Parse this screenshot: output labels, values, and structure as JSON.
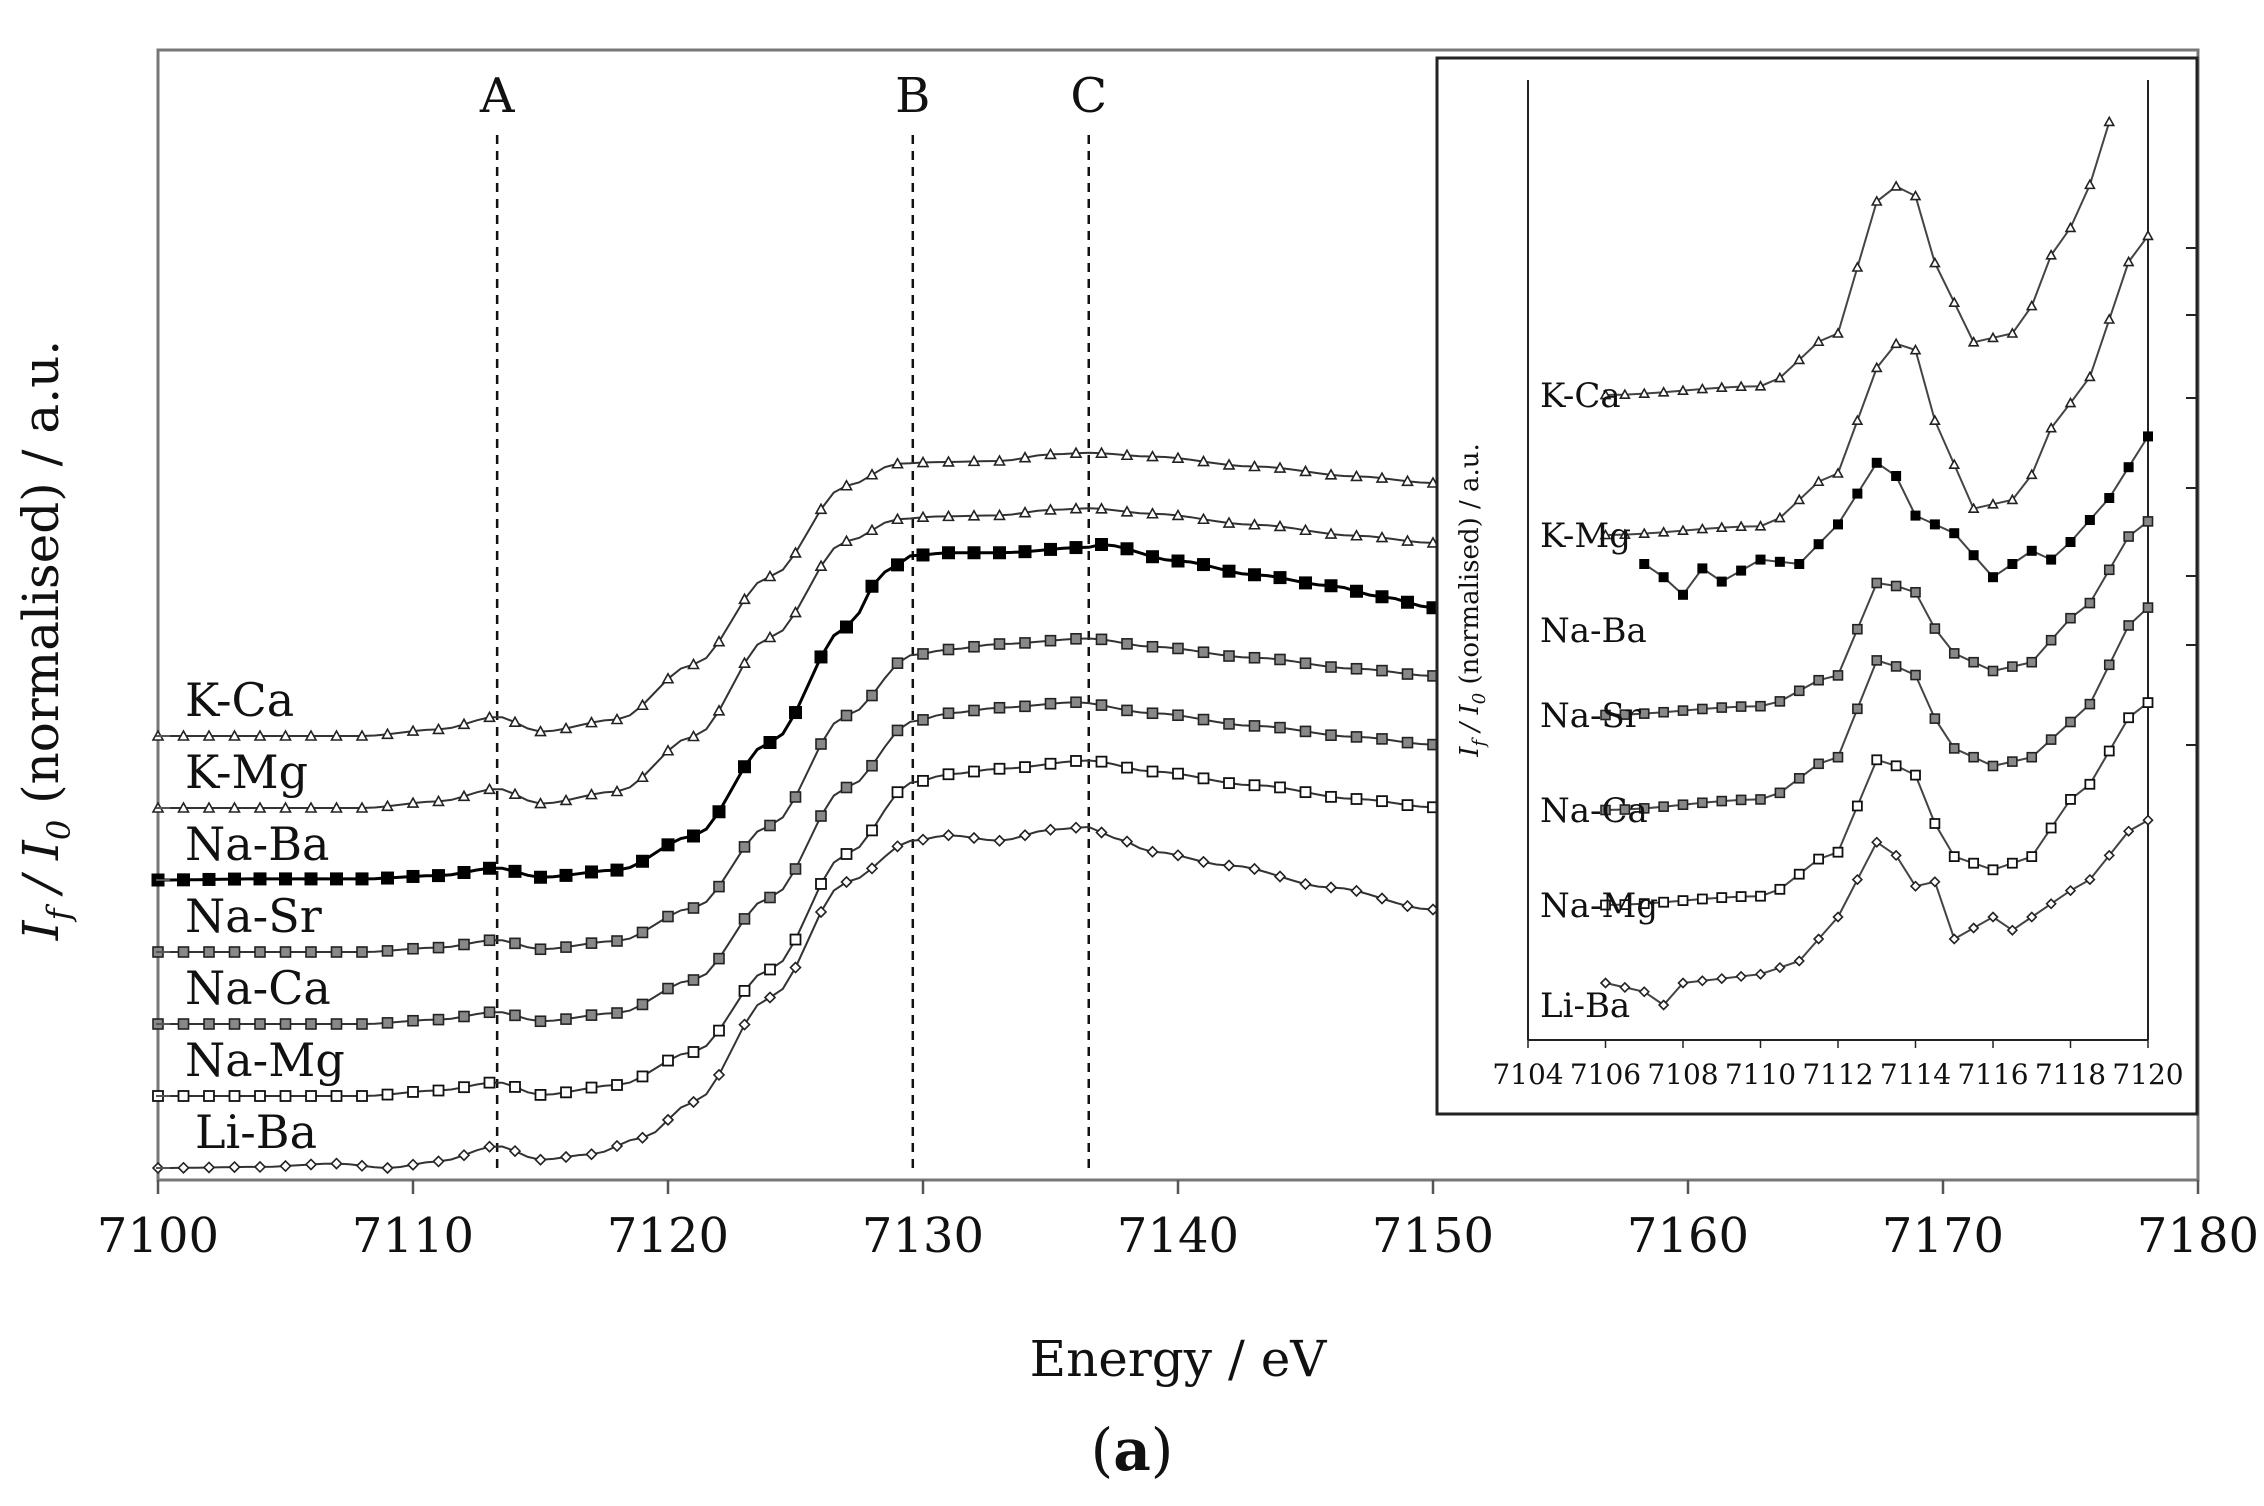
{
  "chart_data": {
    "type": "line",
    "title": "",
    "xlabel": "Energy / eV",
    "ylabel": "I_f / I_0 (normalised) / a.u.",
    "ylabel_parts": {
      "i": "I",
      "f": "f",
      "slash": " / ",
      "i0": "I",
      "zero": "0",
      "rest": " (normalised) / a.u."
    },
    "xlim": [
      7100,
      7180
    ],
    "xticks": [
      7100,
      7110,
      7120,
      7130,
      7140,
      7150,
      7160,
      7170,
      7180
    ],
    "caption": {
      "open": "(",
      "letter": "a",
      "close": ")"
    },
    "reference_lines": [
      {
        "label": "A",
        "x": 7113.3
      },
      {
        "label": "B",
        "x": 7129.6
      },
      {
        "label": "C",
        "x": 7136.5
      }
    ],
    "series": [
      {
        "name": "K-Ca",
        "marker": "triangle",
        "offset": 6,
        "x": [
          7100,
          7108,
          7111,
          7113.3,
          7115,
          7118,
          7121,
          7124,
          7127,
          7129,
          7130.5,
          7133,
          7135,
          7136.5,
          7139,
          7143,
          7147,
          7150
        ],
        "y": [
          0,
          0,
          0.12,
          0.35,
          0.08,
          0.3,
          1.3,
          2.9,
          4.55,
          4.95,
          4.98,
          5.0,
          5.12,
          5.15,
          5.08,
          4.9,
          4.72,
          4.6
        ]
      },
      {
        "name": "K-Mg",
        "marker": "triangle",
        "offset": 5,
        "x": [
          7100,
          7108,
          7111,
          7113.3,
          7115,
          7118,
          7121,
          7124,
          7127,
          7129,
          7130.5,
          7133,
          7135,
          7136.5,
          7139,
          7143,
          7147,
          7150
        ],
        "y": [
          0,
          0,
          0.12,
          0.35,
          0.08,
          0.3,
          1.3,
          3.1,
          4.85,
          5.25,
          5.3,
          5.32,
          5.42,
          5.45,
          5.35,
          5.15,
          4.95,
          4.82
        ]
      },
      {
        "name": "Na-Ba",
        "marker": "filled-square",
        "offset": 4,
        "x": [
          7100,
          7104,
          7108,
          7111,
          7113.3,
          7115,
          7118,
          7121,
          7124,
          7127,
          7128.5,
          7129.6,
          7131,
          7133,
          7136.5,
          7137,
          7140,
          7143,
          7146,
          7148,
          7150
        ],
        "y": [
          0,
          0.02,
          0.02,
          0.08,
          0.22,
          0.05,
          0.18,
          0.8,
          2.5,
          4.6,
          5.6,
          5.9,
          5.95,
          5.95,
          6.05,
          6.1,
          5.8,
          5.55,
          5.35,
          5.15,
          4.95
        ]
      },
      {
        "name": "Na-Sr",
        "marker": "grey-square",
        "offset": 3,
        "x": [
          7100,
          7108,
          7111,
          7113.3,
          7115,
          7118,
          7121,
          7124,
          7127,
          7129.6,
          7131,
          7133,
          7136.5,
          7139,
          7143,
          7147,
          7150
        ],
        "y": [
          0,
          0,
          0.08,
          0.22,
          0.05,
          0.2,
          0.8,
          2.3,
          4.3,
          5.4,
          5.5,
          5.6,
          5.7,
          5.55,
          5.35,
          5.15,
          5.02
        ]
      },
      {
        "name": "Na-Ca",
        "marker": "grey-square",
        "offset": 2,
        "x": [
          7100,
          7108,
          7111,
          7113.3,
          7115,
          7118,
          7121,
          7124,
          7127,
          7129.6,
          7131,
          7133,
          7136,
          7139,
          7143,
          7147,
          7150
        ],
        "y": [
          0,
          0,
          0.08,
          0.22,
          0.05,
          0.2,
          0.8,
          2.3,
          4.3,
          5.5,
          5.65,
          5.75,
          5.85,
          5.65,
          5.42,
          5.22,
          5.08
        ]
      },
      {
        "name": "Na-Mg",
        "marker": "open-square",
        "offset": 1,
        "x": [
          7100,
          7108,
          7111,
          7113.3,
          7115,
          7118,
          7121,
          7124,
          7127,
          7129.6,
          7131,
          7133,
          7136.5,
          7139,
          7143,
          7147,
          7150
        ],
        "y": [
          0,
          0,
          0.1,
          0.25,
          0.02,
          0.2,
          0.8,
          2.3,
          4.4,
          5.7,
          5.85,
          5.95,
          6.1,
          5.9,
          5.65,
          5.4,
          5.25
        ]
      },
      {
        "name": "Li-Ba",
        "marker": "diamond",
        "offset": 0,
        "x": [
          7100,
          7104,
          7107,
          7109,
          7111,
          7113.3,
          7115,
          7117,
          7119,
          7121,
          7124,
          7127,
          7129.6,
          7131,
          7133,
          7135,
          7136.5,
          7137.5,
          7139,
          7142,
          7146,
          7150
        ],
        "y": [
          0,
          0.02,
          0.08,
          0.0,
          0.12,
          0.4,
          0.15,
          0.25,
          0.55,
          1.2,
          3.1,
          5.2,
          5.95,
          6.05,
          5.95,
          6.15,
          6.2,
          6.0,
          5.75,
          5.5,
          5.1,
          4.7
        ]
      }
    ],
    "inset": {
      "ylabel": "I_f / I_0 (normalised) / a.u.",
      "ylabel_parts": {
        "i": "I",
        "f": "f",
        "slash": " / ",
        "i0": "I",
        "zero": "0",
        "rest": " (normalised) / a.u."
      },
      "xlim": [
        7104,
        7120
      ],
      "xticks": [
        7104,
        7106,
        7108,
        7110,
        7112,
        7114,
        7116,
        7118,
        7120
      ],
      "series": [
        {
          "name": "K-Ca",
          "marker": "triangle",
          "x": [
            7106,
            7110,
            7112,
            7113,
            7113.8,
            7114.5,
            7115.5,
            7116.5,
            7118,
            7119.2
          ],
          "y": [
            0,
            0.1,
            0.7,
            2.2,
            2.45,
            1.5,
            0.6,
            0.7,
            1.9,
            3.2
          ]
        },
        {
          "name": "K-Mg",
          "marker": "triangle",
          "x": [
            7106,
            7110,
            7112,
            7113,
            7113.8,
            7114.5,
            7115.5,
            7116.5,
            7118,
            7120
          ],
          "y": [
            0,
            0.1,
            0.7,
            1.9,
            2.3,
            1.3,
            0.3,
            0.4,
            1.5,
            3.4
          ]
        },
        {
          "name": "Na-Ba",
          "marker": "filled-square",
          "x": [
            7107,
            7107.5,
            7108,
            7108.5,
            7109,
            7110,
            7111,
            7112,
            7113,
            7113.5,
            7114,
            7115,
            7116,
            7117,
            7117.5,
            7118,
            7119,
            7120
          ],
          "y": [
            0.75,
            0.6,
            0.4,
            0.7,
            0.55,
            0.8,
            0.75,
            1.2,
            1.9,
            1.75,
            1.3,
            1.1,
            0.6,
            0.9,
            0.8,
            1.0,
            1.5,
            2.2
          ]
        },
        {
          "name": "Na-Sr",
          "marker": "grey-square",
          "x": [
            7106,
            7110,
            7112,
            7113,
            7113.8,
            7115,
            7116,
            7117,
            7118,
            7120
          ],
          "y": [
            0,
            0.1,
            0.45,
            1.5,
            1.45,
            0.7,
            0.5,
            0.6,
            1.1,
            2.2
          ]
        },
        {
          "name": "Na-Ca",
          "marker": "grey-square",
          "x": [
            7106,
            7110,
            7112,
            7113,
            7113.8,
            7115,
            7116,
            7117,
            7118,
            7120
          ],
          "y": [
            0,
            0.12,
            0.6,
            1.7,
            1.6,
            0.7,
            0.5,
            0.6,
            1.0,
            2.3
          ]
        },
        {
          "name": "Na-Mg",
          "marker": "open-square",
          "x": [
            7106,
            7110,
            7112,
            7113,
            7113.8,
            7115,
            7116,
            7117,
            7118,
            7120
          ],
          "y": [
            0,
            0.1,
            0.6,
            1.65,
            1.55,
            0.55,
            0.4,
            0.55,
            1.2,
            2.3
          ]
        },
        {
          "name": "Li-Ba",
          "marker": "diamond",
          "x": [
            7106,
            7107,
            7107.5,
            7108,
            7109,
            7110,
            7111,
            7112,
            7113,
            7113.5,
            7114,
            7114.5,
            7115,
            7116,
            7116.5,
            7117,
            7118,
            7120
          ],
          "y": [
            0.25,
            0.15,
            0.0,
            0.25,
            0.3,
            0.35,
            0.5,
            1.0,
            1.85,
            1.7,
            1.35,
            1.4,
            0.75,
            1.0,
            0.85,
            1.0,
            1.3,
            2.1
          ]
        }
      ]
    }
  }
}
